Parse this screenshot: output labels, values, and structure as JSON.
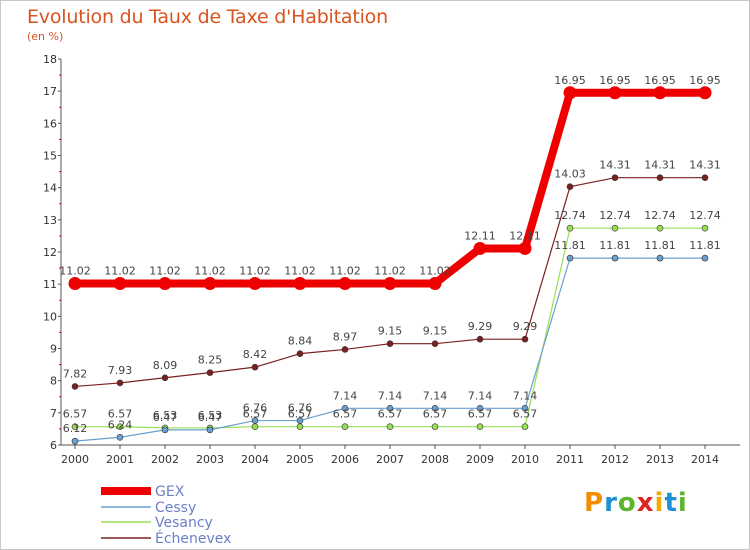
{
  "header": {
    "title": "Evolution du Taux de Taxe d'Habitation",
    "subtitle": "(en %)"
  },
  "logo": {
    "text": "Proxiti"
  },
  "chart_data": {
    "type": "line",
    "x": [
      "2000",
      "2001",
      "2002",
      "2003",
      "2004",
      "2005",
      "2006",
      "2007",
      "2008",
      "2009",
      "2010",
      "2011",
      "2012",
      "2013",
      "2014"
    ],
    "ylim": [
      6,
      18
    ],
    "yticks": [
      "6",
      "7",
      "8",
      "9",
      "10",
      "11",
      "12",
      "13",
      "14",
      "15",
      "16",
      "17",
      "18"
    ],
    "grid": false,
    "legend": "bottom-left",
    "series": [
      {
        "name": "GEX",
        "color": "#ee0000",
        "width": 8,
        "values": [
          11.02,
          11.02,
          11.02,
          11.02,
          11.02,
          11.02,
          11.02,
          11.02,
          11.02,
          12.11,
          12.11,
          16.95,
          16.95,
          16.95,
          16.95
        ],
        "labels": [
          "11.02",
          "11.02",
          "11.02",
          "11.02",
          "11.02",
          "11.02",
          "11.02",
          "11.02",
          "11.02",
          "12.11",
          "12.11",
          "16.95",
          "16.95",
          "16.95",
          "16.95"
        ]
      },
      {
        "name": "Cessy",
        "color": "#6a9fd0",
        "width": 1.2,
        "values": [
          6.12,
          6.24,
          6.47,
          6.47,
          6.76,
          6.76,
          7.14,
          7.14,
          7.14,
          7.14,
          7.14,
          11.81,
          11.81,
          11.81,
          11.81
        ],
        "labels": [
          "6.12",
          "6.24",
          "6.47",
          "6.47",
          "6.76",
          "6.76",
          "7.14",
          "7.14",
          "7.14",
          "7.14",
          "7.14",
          "11.81",
          "11.81",
          "11.81",
          "11.81"
        ]
      },
      {
        "name": "Vesancy",
        "color": "#99dd55",
        "width": 1.2,
        "values": [
          6.57,
          6.57,
          6.53,
          6.53,
          6.57,
          6.57,
          6.57,
          6.57,
          6.57,
          6.57,
          6.57,
          12.74,
          12.74,
          12.74,
          12.74
        ],
        "labels": [
          "6.57",
          "6.57",
          "6.53",
          "6.53",
          "6.57",
          "6.57",
          "6.57",
          "6.57",
          "6.57",
          "6.57",
          "6.57",
          "12.74",
          "12.74",
          "12.74",
          "12.74"
        ]
      },
      {
        "name": "Échenevex",
        "color": "#7a2020",
        "width": 1.2,
        "values": [
          7.82,
          7.93,
          8.09,
          8.25,
          8.42,
          8.84,
          8.97,
          9.15,
          9.15,
          9.29,
          9.29,
          14.03,
          14.31,
          14.31,
          14.31
        ],
        "labels": [
          "7.82",
          "7.93",
          "8.09",
          "8.25",
          "8.42",
          "8.84",
          "8.97",
          "9.15",
          "9.15",
          "9.29",
          "9.29",
          "14.03",
          "14.31",
          "14.31",
          "14.31"
        ]
      }
    ]
  }
}
